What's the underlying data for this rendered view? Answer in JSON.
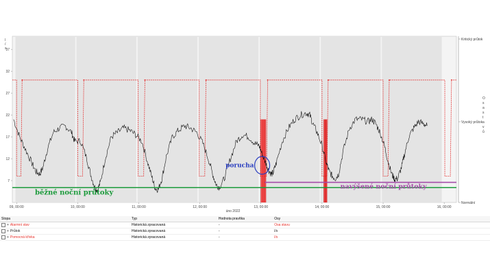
{
  "chart_data": {
    "type": "line",
    "ylabel_left": "l / s",
    "xlabel": "úno 2022",
    "x_ticks": [
      "09, 00:00",
      "10, 00:00",
      "11, 00:00",
      "12, 00:00",
      "13, 00:00",
      "14, 00:00",
      "15, 00:00",
      "16, 00:00"
    ],
    "y_ticks": [
      7,
      12,
      17,
      22,
      27,
      32,
      37
    ],
    "ylim": [
      2,
      40
    ],
    "xlim_days": [
      8.93,
      16.2
    ],
    "right_axis_labels": [
      "Kritický průtok",
      "Vysoký průtok",
      "Normální"
    ],
    "right_axis_title": "O s a  s t a v ů",
    "background_bands": [
      [
        8.98,
        9.96
      ],
      [
        9.98,
        10.96
      ],
      [
        10.98,
        11.96
      ],
      [
        11.98,
        12.96
      ],
      [
        12.98,
        13.96
      ],
      [
        13.98,
        14.96
      ],
      [
        14.98,
        15.96
      ]
    ],
    "series": [
      {
        "name": "Průtok",
        "color": "#111111",
        "generator_note_free": true,
        "points": [
          [
            8.95,
            21
          ],
          [
            9.05,
            17
          ],
          [
            9.15,
            14
          ],
          [
            9.25,
            11
          ],
          [
            9.32,
            9
          ],
          [
            9.38,
            8.5
          ],
          [
            9.43,
            10
          ],
          [
            9.5,
            14
          ],
          [
            9.6,
            18
          ],
          [
            9.7,
            19
          ],
          [
            9.8,
            19.5
          ],
          [
            9.9,
            18
          ],
          [
            9.95,
            16
          ],
          [
            10.05,
            16
          ],
          [
            10.15,
            12
          ],
          [
            10.22,
            8
          ],
          [
            10.28,
            5.5
          ],
          [
            10.32,
            4.8
          ],
          [
            10.37,
            6.5
          ],
          [
            10.45,
            12
          ],
          [
            10.55,
            17
          ],
          [
            10.65,
            18
          ],
          [
            10.75,
            19
          ],
          [
            10.85,
            18.5
          ],
          [
            10.95,
            17.5
          ],
          [
            11.05,
            16
          ],
          [
            11.15,
            11
          ],
          [
            11.22,
            7.5
          ],
          [
            11.27,
            5.2
          ],
          [
            11.32,
            5
          ],
          [
            11.38,
            7.5
          ],
          [
            11.45,
            12.5
          ],
          [
            11.55,
            17
          ],
          [
            11.65,
            18.5
          ],
          [
            11.75,
            19.5
          ],
          [
            11.85,
            19
          ],
          [
            11.95,
            18
          ],
          [
            12.05,
            15.5
          ],
          [
            12.15,
            11.5
          ],
          [
            12.22,
            8
          ],
          [
            12.27,
            6
          ],
          [
            12.32,
            5.5
          ],
          [
            12.4,
            7.5
          ],
          [
            12.5,
            12
          ],
          [
            12.6,
            16
          ],
          [
            12.7,
            17.5
          ],
          [
            12.8,
            17
          ],
          [
            12.9,
            15.5
          ],
          [
            12.97,
            15
          ],
          [
            13.02,
            13
          ],
          [
            13.08,
            11
          ],
          [
            13.12,
            9.5
          ],
          [
            13.17,
            8.5
          ],
          [
            13.2,
            8.8
          ],
          [
            13.25,
            11
          ],
          [
            13.35,
            16
          ],
          [
            13.45,
            19
          ],
          [
            13.55,
            21
          ],
          [
            13.65,
            22
          ],
          [
            13.75,
            22.5
          ],
          [
            13.8,
            22
          ],
          [
            13.85,
            20
          ],
          [
            13.92,
            18
          ],
          [
            14.0,
            15
          ],
          [
            14.07,
            11
          ],
          [
            14.12,
            9
          ],
          [
            14.17,
            8
          ],
          [
            14.22,
            7.5
          ],
          [
            14.27,
            8.5
          ],
          [
            14.35,
            14
          ],
          [
            14.45,
            19
          ],
          [
            14.55,
            21
          ],
          [
            14.65,
            21
          ],
          [
            14.75,
            20.5
          ],
          [
            14.82,
            21
          ],
          [
            14.88,
            20
          ],
          [
            14.95,
            18
          ],
          [
            15.02,
            15
          ],
          [
            15.08,
            11.5
          ],
          [
            15.14,
            8.5
          ],
          [
            15.19,
            7.3
          ],
          [
            15.24,
            7.5
          ],
          [
            15.3,
            10
          ],
          [
            15.35,
            13
          ],
          [
            15.42,
            17
          ],
          [
            15.5,
            19
          ],
          [
            15.58,
            20.5
          ],
          [
            15.66,
            20
          ],
          [
            15.72,
            19.5
          ]
        ]
      },
      {
        "name": "Pomocná křivka",
        "color": "#e43b3b",
        "level_high": 30,
        "level_low": 8,
        "low_windows": [
          [
            9.0,
            9.07
          ],
          [
            10.0,
            10.08
          ],
          [
            10.99,
            11.08
          ],
          [
            11.99,
            12.08
          ],
          [
            12.99,
            13.09
          ],
          [
            14.0,
            14.08
          ],
          [
            15.0,
            15.08
          ],
          [
            16.01,
            16.1
          ]
        ],
        "dots_at_high": [
          9.09,
          10.1,
          11.1,
          12.1,
          13.11,
          14.1,
          15.1,
          16.12
        ]
      },
      {
        "name": "Alarmní stav",
        "color": "#ff2b2b",
        "spikes": [
          [
            13.0,
            13.08
          ],
          [
            14.03,
            14.08
          ]
        ]
      }
    ],
    "annotations": [
      {
        "text": "běžné noční průtoky",
        "color": "#1a9a3a",
        "level": 5.4,
        "x_from": 8.93,
        "x_to": 16.2,
        "label_x": 9.3
      },
      {
        "text": "navýšené noční průtoky",
        "color": "#a44aa8",
        "level": 6.6,
        "x_from": 13.06,
        "x_to": 16.2,
        "label_x": 14.3
      },
      {
        "text": "porucha",
        "color": "#2a3ec0",
        "circle_x": 13.02,
        "circle_y": 10.5,
        "label_x": 12.42
      }
    ]
  },
  "legend_table": {
    "headers": [
      "Stopa",
      "Typ",
      "Hodnota pravítka",
      "Osy"
    ],
    "rows": [
      {
        "name": "Alarmní stav",
        "type": "Historická zpracovaná",
        "value": "-",
        "axis": "Osa stavu",
        "color": "#e8302a"
      },
      {
        "name": "Průtok",
        "type": "Historická zpracovaná",
        "value": "-",
        "axis": "l/s",
        "color": "#222222"
      },
      {
        "name": "Pomocná křivka",
        "type": "Historická zpracovaná",
        "value": "-",
        "axis": "l/s",
        "color": "#e8302a"
      }
    ]
  }
}
